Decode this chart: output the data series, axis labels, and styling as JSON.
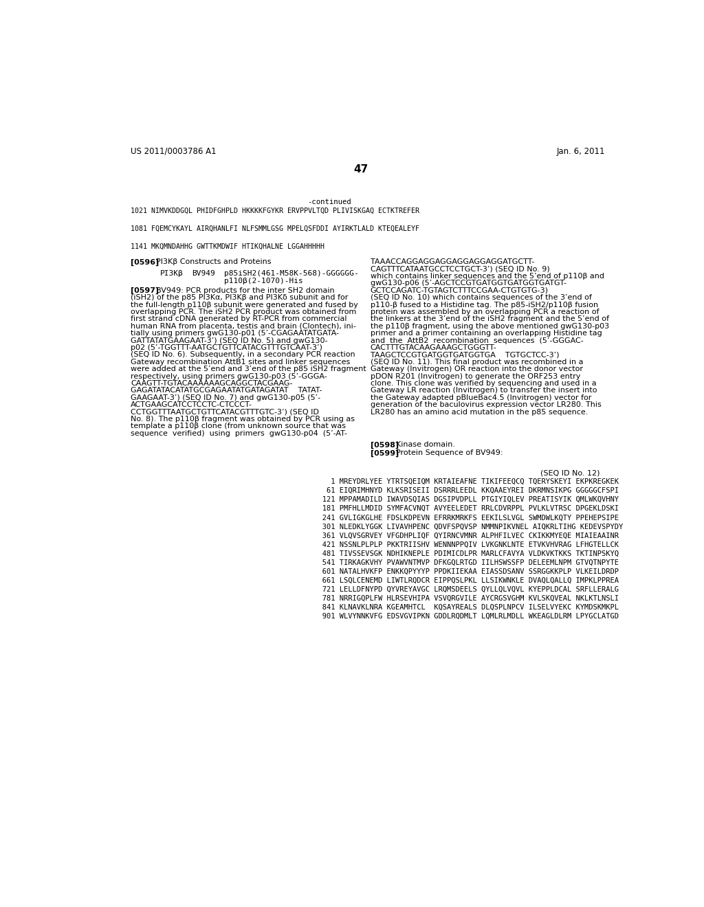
{
  "background_color": "#ffffff",
  "header_left": "US 2011/0003786 A1",
  "header_right": "Jan. 6, 2011",
  "page_number": "47",
  "continued_label": "-continued",
  "sequence_lines_top": [
    "1021 NIMVKDDGQL PHIDFGHPLD HKKKKFGYKR ERVPPVLTQD PLIVISKGAQ ECTKTREFER",
    "",
    "1081 FQEMCYKAYL AIRQHANLFI NLFSMMLGSG MPELQSFDDI AYIRKTLALD KTEQEALEYF",
    "",
    "1141 MKQMNDAHHG GWTTKMDWIF HTIKQHALNE LGGAHHHHH"
  ],
  "paragraph_0597_left_lines": [
    "[0597]  BV949: PCR products for the inter SH2 domain",
    "(iSH2) of the p85 PI3Kα, PI3Kβ and PI3Kδ subunit and for",
    "the full-length p110β subunit were generated and fused by",
    "overlapping PCR. The iSH2 PCR product was obtained from",
    "first strand cDNA generated by RT-PCR from commercial",
    "human RNA from placenta, testis and brain (Clontech), ini-",
    "tially using primers gwG130-p01 (5’-CGAGAATATGATA-",
    "GATTATATGAAGAAT-3’) (SEQ ID No. 5) and gwG130-",
    "p02 (5’-TGGTTT-AATGCTGTTCATACGTTTGTCAAT-3’)",
    "(SEQ ID No. 6). Subsequently, in a secondary PCR reaction",
    "Gateway recombination AttB1 sites and linker sequences",
    "were added at the 5’end and 3’end of the p85 iSH2 fragment",
    "respectively, using primers gwG130-p03 (5’-GGGA-",
    "CAAGTT-TGTACAAAAAAGCAGGCTACGAAG-",
    "GAGATATACATATGCGAGAATATGATAGATAT    TATAT-",
    "GAAGAAT-3’) (SEQ ID No. 7) and gwG130-p05 (5’-",
    "ACTGAAGCATCCTCCTC-CTCCCT-",
    "CCTGGTTTAATGCTGTTCATACGTTTGTC-3’) (SEQ ID",
    "No. 8). The p110β fragment was obtained by PCR using as",
    "template a p110β clone (from unknown source that was",
    "sequence  verified)  using  primers  gwG130-p04  (5’-AT-"
  ],
  "paragraph_right_col_lines": [
    "TAAACCAGGAGGAGGAGGAGGAGGATGCTT-",
    "CAGTTTCATAATGCCTCCTGCT-3’) (SEQ ID No. 9)",
    "which contains linker sequences and the 5’end of p110β and",
    "gwG130-p06 (5’-AGCTCCGTGATGGTGATGGTGATGT-",
    "GCTCCAGATC-TGTAGTCTTTCCGAA-CTGTGTG-3)",
    "(SEQ ID No. 10) which contains sequences of the 3’end of",
    "p110-β fused to a Histidine tag. The p85-iSH2/p110β fusion",
    "protein was assembled by an overlapping PCR a reaction of",
    "the linkers at the 3’end of the iSH2 fragment and the 5’end of",
    "the p110β fragment, using the above mentioned gwG130-p03",
    "primer and a primer containing an overlapping Histidine tag",
    "and  the  AttB2  recombination  sequences  (5’-GGGAC-",
    "CACTTTGTACAAGAAAGCTGGGTT-",
    "TAAGCTCCGTGATGGTGATGGTGA    TGTGCTCC-3’)",
    "(SEQ ID No. 11). This final product was recombined in a",
    "Gateway (Invitrogen) OR reaction into the donor vector",
    "pDON R201 (Invitrogen) to generate the ORF253 entry",
    "clone. This clone was verified by sequencing and used in a",
    "Gateway LR reaction (Invitrogen) to transfer the insert into",
    "the Gateway adapted pBlueBac4.5 (Invitrogen) vector for",
    "generation of the baculovirus expression vector LR280. This",
    "LR280 has an amino acid mutation in the p85 sequence."
  ],
  "seq_id_note": "(SEQ ID No. 12)",
  "sequence_lines_bottom": [
    "     1 MREYDRLYEE YTRTSQEIQM KRTAIEAFNE TIKIFEEQCQ TQERYSKEYI EKPKREGKEK",
    "    61 EIQRIMHNYD KLKSRISEII DSRRRLEEDL KKQAAEYREI DKRMNSIKPG GGGGGCFSPI",
    "   121 MPPAMADILD IWAVDSQIAS DGSIPVDPLL PTGIYIQLEV PREATISYIK QMLWKQVHNY",
    "   181 PMFHLLMDID SYMFACVNQT AVYEELEDET RRLCDVRPPL PVLKLVTRSC DPGEKLDSKI",
    "   241 GVLIGKGLHE FDSLKDPEVN EFRRKMRKFS EEKILSLVGL SWMDWLKQTY PPEHEPSIPE",
    "   301 NLEDKLYGGK LIVAVHPENC QDVFSPQVSP NMMNPIKVNEL AIQKRLTIHG KEDEVSPYDY",
    "   361 VLQVSGRVEY VFGDHPLIQF QYIRNCVMNR ALPHFILVEC CKIKKMYEQE MIAIEAAINR",
    "   421 NSSNLPLPLP PKKTRIISHV WENNNPPQIV LVKGNKLNTE ETVKVHVRAG LFHGTELLCK",
    "   481 TIVSSEVSGK NDHIKNEPLE PDIMICDLPR MARLCFAVYA VLDKVKTKKS TKTINPSKYQ",
    "   541 TIRKAGKVHY PVAWVNTMVP DFKGQLRTGD IILHSWSSFP DELEEMLNPM GTVQTNPYTE",
    "   601 NATALHVKFP ENKKQPYYYP PPDKIIEKAA EIASSDSANV SSRGGKKPLP VLKEILDRDP",
    "   661 LSQLCENEMD LIWTLRQDCR EIPPQSLPKL LLSIKWNKLE DVAQLQALLQ IMPKLPPREA",
    "   721 LELLDFNYPD QYVREYAVGC LRQMSDEELS QYLLQLVQVL KYEPPLDCAL SRFLLERALG",
    "   781 NRRIGQPLFW HLRSEVHIPA VSVQRGVILE AYCRGSVGHM KVLSKQVEAL NKLKTLNSLI",
    "   841 KLNAVKLNRA KGEAMHTCL  KQSAYREALS DLQSPLNPCV ILSELVYEKC KYMDSKMKPL",
    "   901 WLVYNNKVFG EDSVGVIPKN GDDLRQDMLT LQMLRLMDLL WKEAGLDLRM LPYGCLATGD"
  ]
}
